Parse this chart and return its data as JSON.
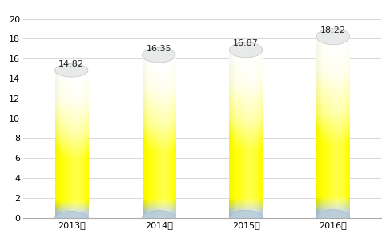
{
  "categories": [
    "2013年",
    "2014年",
    "2015年",
    "2016年"
  ],
  "values": [
    14.82,
    16.35,
    16.87,
    18.22
  ],
  "ylim": [
    0,
    21
  ],
  "yticks": [
    0,
    2,
    4,
    6,
    8,
    10,
    12,
    14,
    16,
    18,
    20
  ],
  "bar_width": 0.38,
  "background_color": "#ffffff",
  "plot_bg_color": "#ffffff",
  "grid_color": "#d8d8d8",
  "tick_fontsize": 8,
  "value_fontsize": 8
}
